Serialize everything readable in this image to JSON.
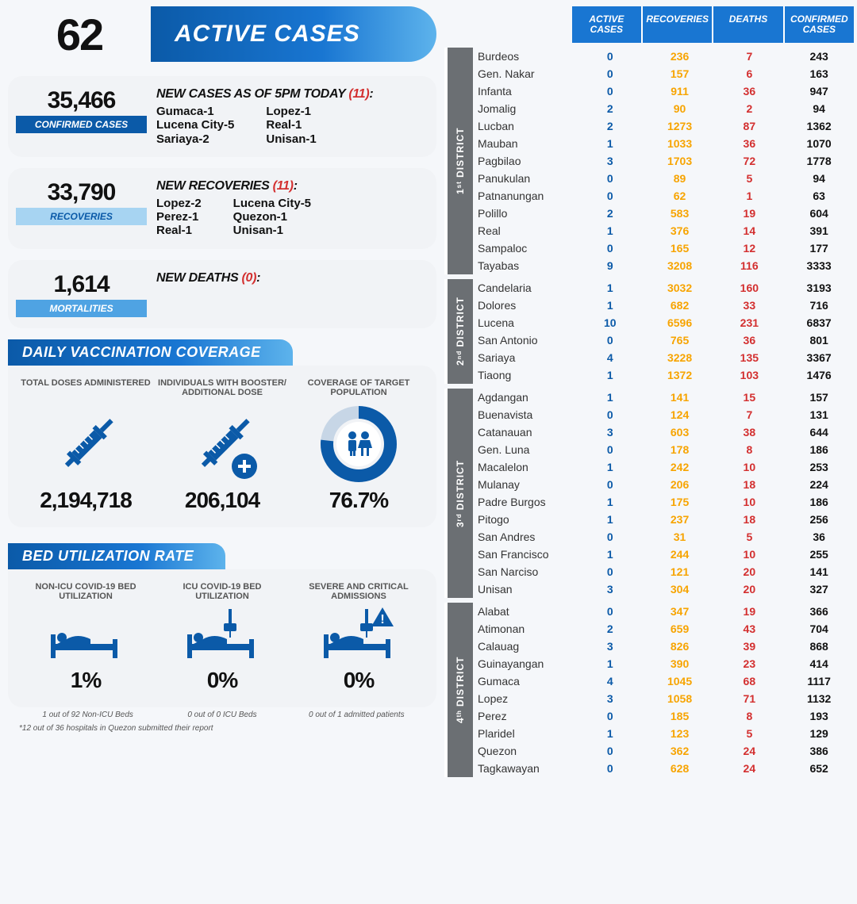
{
  "colors": {
    "primary": "#0b5aa8",
    "grad_mid": "#1976d2",
    "grad_light": "#5db3ec",
    "active": "#0b5aa8",
    "rec": "#f7a400",
    "death": "#d32f2f",
    "conf": "#111111",
    "panel_bg": "#f1f3f6",
    "district_tab": "#6b6f73"
  },
  "header": {
    "number": "62",
    "label": "ACTIVE CASES"
  },
  "stats": {
    "confirmed": {
      "value": "35,466",
      "chip": "CONFIRMED CASES",
      "title": "NEW CASES AS OF 5PM TODAY",
      "count": "(11)",
      "col1": [
        "Gumaca-1",
        "Lucena City-5",
        "Sariaya-2"
      ],
      "col2": [
        "Lopez-1",
        "Real-1",
        "Unisan-1"
      ]
    },
    "recoveries": {
      "value": "33,790",
      "chip": "RECOVERIES",
      "title": "NEW RECOVERIES",
      "count": "(11)",
      "col1": [
        "Lopez-2",
        "Perez-1",
        "Real-1"
      ],
      "col2": [
        "Lucena City-5",
        "Quezon-1",
        "Unisan-1"
      ]
    },
    "mortalities": {
      "value": "1,614",
      "chip": "MORTALITIES",
      "title": "NEW DEATHS",
      "count": "(0)",
      "col1": [],
      "col2": []
    }
  },
  "vaccination": {
    "banner": "DAILY VACCINATION COVERAGE",
    "cols": [
      {
        "label": "TOTAL DOSES ADMINISTERED",
        "value": "2,194,718",
        "icon": "syringe"
      },
      {
        "label": "INDIVIDUALS WITH BOOSTER/ ADDITIONAL DOSE",
        "value": "206,104",
        "icon": "syringe-plus"
      },
      {
        "label": "COVERAGE OF TARGET POPULATION",
        "value": "76.7%",
        "icon": "donut"
      }
    ]
  },
  "bed": {
    "banner": "BED UTILIZATION RATE",
    "cols": [
      {
        "label": "NON-ICU COVID-19 BED UTILIZATION",
        "value": "1%",
        "sub": "1 out of 92 Non-ICU Beds",
        "icon": "bed"
      },
      {
        "label": "ICU COVID-19 BED UTILIZATION",
        "value": "0%",
        "sub": "0 out of 0 ICU Beds",
        "icon": "icu"
      },
      {
        "label": "SEVERE AND CRITICAL ADMISSIONS",
        "value": "0%",
        "sub": "0 out of 1 admitted patients",
        "icon": "alert-bed"
      }
    ],
    "footnote": "*12 out of 36 hospitals in Quezon submitted their report"
  },
  "table": {
    "headers": [
      "",
      "ACTIVE CASES",
      "RECOVERIES",
      "DEATHS",
      "CONFIRMED CASES"
    ],
    "districts": [
      {
        "name": "1ˢᵗ DISTRICT",
        "rows": [
          [
            "Burdeos",
            "0",
            "236",
            "7",
            "243"
          ],
          [
            "Gen. Nakar",
            "0",
            "157",
            "6",
            "163"
          ],
          [
            "Infanta",
            "0",
            "911",
            "36",
            "947"
          ],
          [
            "Jomalig",
            "2",
            "90",
            "2",
            "94"
          ],
          [
            "Lucban",
            "2",
            "1273",
            "87",
            "1362"
          ],
          [
            "Mauban",
            "1",
            "1033",
            "36",
            "1070"
          ],
          [
            "Pagbilao",
            "3",
            "1703",
            "72",
            "1778"
          ],
          [
            "Panukulan",
            "0",
            "89",
            "5",
            "94"
          ],
          [
            "Patnanungan",
            "0",
            "62",
            "1",
            "63"
          ],
          [
            "Polillo",
            "2",
            "583",
            "19",
            "604"
          ],
          [
            "Real",
            "1",
            "376",
            "14",
            "391"
          ],
          [
            "Sampaloc",
            "0",
            "165",
            "12",
            "177"
          ],
          [
            "Tayabas",
            "9",
            "3208",
            "116",
            "3333"
          ]
        ]
      },
      {
        "name": "2ⁿᵈ DISTRICT",
        "rows": [
          [
            "Candelaria",
            "1",
            "3032",
            "160",
            "3193"
          ],
          [
            "Dolores",
            "1",
            "682",
            "33",
            "716"
          ],
          [
            "Lucena",
            "10",
            "6596",
            "231",
            "6837"
          ],
          [
            "San Antonio",
            "0",
            "765",
            "36",
            "801"
          ],
          [
            "Sariaya",
            "4",
            "3228",
            "135",
            "3367"
          ],
          [
            "Tiaong",
            "1",
            "1372",
            "103",
            "1476"
          ]
        ]
      },
      {
        "name": "3ʳᵈ DISTRICT",
        "rows": [
          [
            "Agdangan",
            "1",
            "141",
            "15",
            "157"
          ],
          [
            "Buenavista",
            "0",
            "124",
            "7",
            "131"
          ],
          [
            "Catanauan",
            "3",
            "603",
            "38",
            "644"
          ],
          [
            "Gen. Luna",
            "0",
            "178",
            "8",
            "186"
          ],
          [
            "Macalelon",
            "1",
            "242",
            "10",
            "253"
          ],
          [
            "Mulanay",
            "0",
            "206",
            "18",
            "224"
          ],
          [
            "Padre Burgos",
            "1",
            "175",
            "10",
            "186"
          ],
          [
            "Pitogo",
            "1",
            "237",
            "18",
            "256"
          ],
          [
            "San Andres",
            "0",
            "31",
            "5",
            "36"
          ],
          [
            "San Francisco",
            "1",
            "244",
            "10",
            "255"
          ],
          [
            "San Narciso",
            "0",
            "121",
            "20",
            "141"
          ],
          [
            "Unisan",
            "3",
            "304",
            "20",
            "327"
          ]
        ]
      },
      {
        "name": "4ᵗʰ DISTRICT",
        "rows": [
          [
            "Alabat",
            "0",
            "347",
            "19",
            "366"
          ],
          [
            "Atimonan",
            "2",
            "659",
            "43",
            "704"
          ],
          [
            "Calauag",
            "3",
            "826",
            "39",
            "868"
          ],
          [
            "Guinayangan",
            "1",
            "390",
            "23",
            "414"
          ],
          [
            "Gumaca",
            "4",
            "1045",
            "68",
            "1117"
          ],
          [
            "Lopez",
            "3",
            "1058",
            "71",
            "1132"
          ],
          [
            "Perez",
            "0",
            "185",
            "8",
            "193"
          ],
          [
            "Plaridel",
            "1",
            "123",
            "5",
            "129"
          ],
          [
            "Quezon",
            "0",
            "362",
            "24",
            "386"
          ],
          [
            "Tagkawayan",
            "0",
            "628",
            "24",
            "652"
          ]
        ]
      }
    ]
  }
}
